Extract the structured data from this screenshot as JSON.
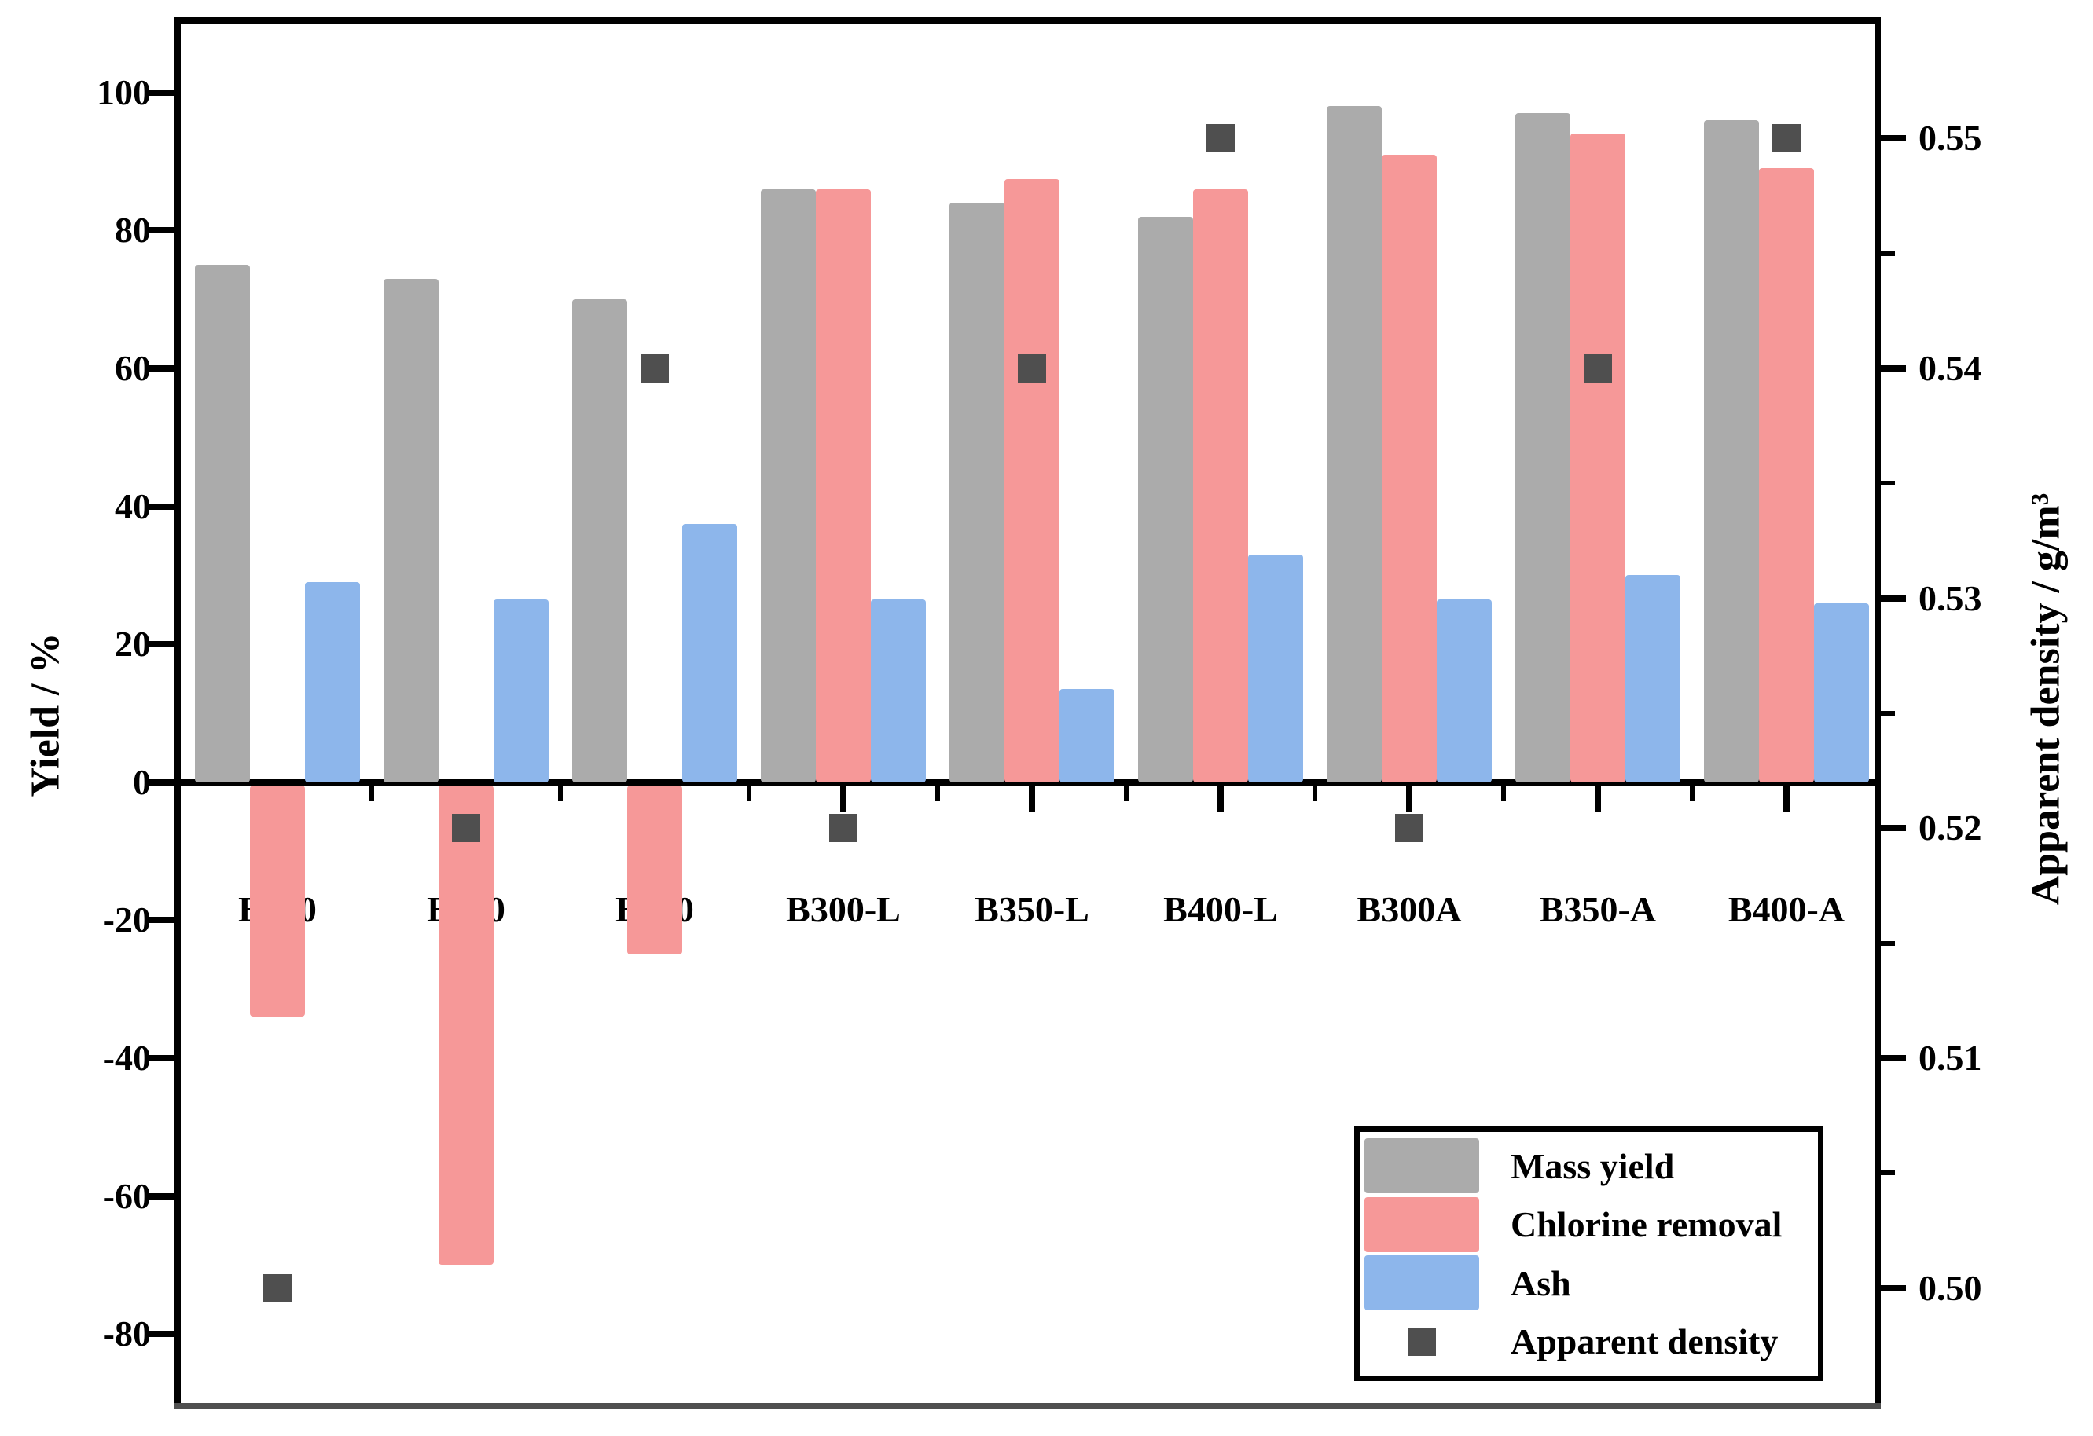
{
  "chart_data": {
    "type": "bar",
    "categories": [
      "B300",
      "B350",
      "B400",
      "B300-L",
      "B350-L",
      "B400-L",
      "B300A",
      "B350-A",
      "B400-A"
    ],
    "series": [
      {
        "name": "Mass yield",
        "type": "bar",
        "axis": "left",
        "color": "#ABABAB",
        "values": [
          75,
          73,
          70,
          86,
          84,
          82,
          98,
          97,
          96
        ]
      },
      {
        "name": "Chlorine removal",
        "type": "bar",
        "axis": "left",
        "color": "#F69898",
        "values": [
          -34,
          -70,
          -25,
          86,
          87.5,
          86,
          91,
          94,
          89
        ]
      },
      {
        "name": "Ash",
        "type": "bar",
        "axis": "left",
        "color": "#8DB6EB",
        "values": [
          29,
          26.5,
          37.5,
          26.5,
          13.5,
          33,
          26.5,
          30,
          26
        ]
      },
      {
        "name": "Apparent density",
        "type": "scatter-square",
        "axis": "right",
        "color": "#4F4F4F",
        "values": [
          0.5,
          0.52,
          0.54,
          0.52,
          0.54,
          0.55,
          0.52,
          0.54,
          0.55
        ]
      }
    ],
    "left_axis": {
      "label": "Yield / %",
      "min": -90,
      "max": 110,
      "major_ticks": [
        100,
        80,
        60,
        40,
        20,
        0,
        -20,
        -40,
        -60,
        -80
      ],
      "tick_labels": [
        "100",
        "80",
        "60",
        "40",
        "20",
        "0",
        "-20",
        "-40",
        "-60",
        "-80"
      ],
      "minor_step": 10
    },
    "right_axis": {
      "label": "Apparent density / g/m³",
      "min": 0.495,
      "max": 0.555,
      "major_ticks": [
        0.55,
        0.54,
        0.53,
        0.52,
        0.51,
        0.5
      ],
      "tick_labels": [
        "0.55",
        "0.54",
        "0.53",
        "0.52",
        "0.51",
        "0.50"
      ],
      "minor_step": 0.005
    },
    "legend": {
      "position": "bottom-right",
      "entries": [
        "Mass yield",
        "Chlorine removal",
        "Ash",
        "Apparent density"
      ]
    },
    "grid": false,
    "frame_color": "#000000",
    "bottom_frame_color": "#4F4F4F"
  }
}
